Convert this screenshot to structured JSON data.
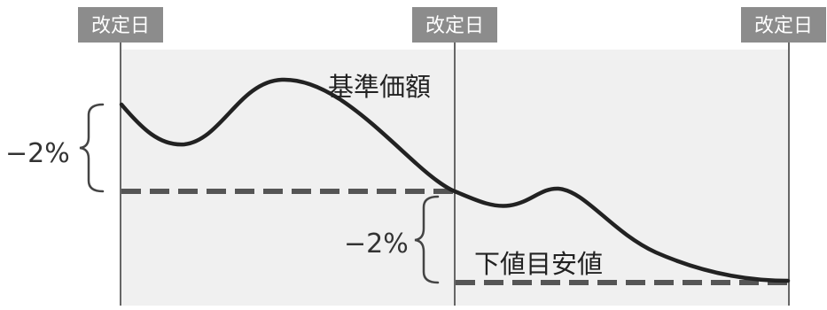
{
  "labels": {
    "revision_date": "改定日",
    "nav": "基準価額",
    "lower_target": "下値目安値",
    "pct_upper": "−2%",
    "pct_lower": "−2%"
  },
  "colors": {
    "tag_bg": "#8c8c8c",
    "tag_text": "#ffffff",
    "panel_bg": "#f0f0f0",
    "curve": "#222222",
    "dashed": "#555555",
    "divider": "#333333",
    "text": "#333333"
  }
}
